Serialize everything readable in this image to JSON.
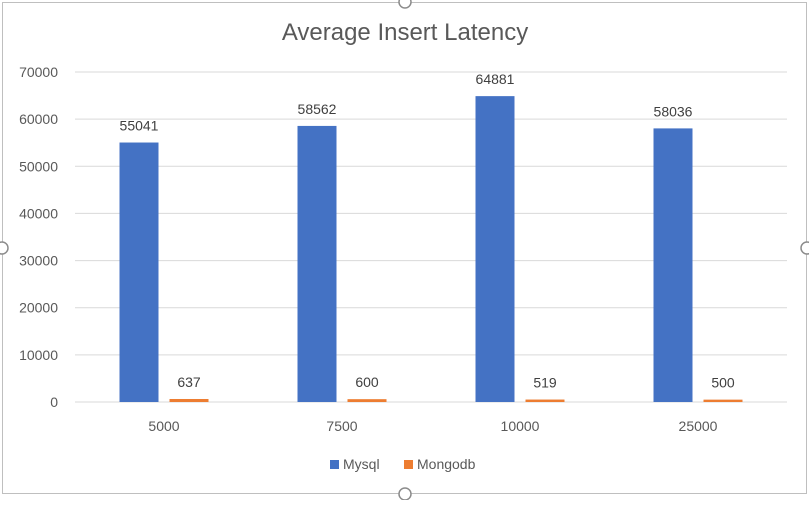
{
  "chart_data": {
    "type": "bar",
    "title": "Average Insert Latency",
    "xlabel": "",
    "ylabel": "",
    "categories": [
      "5000",
      "7500",
      "10000",
      "25000"
    ],
    "series": [
      {
        "name": "Mysql",
        "values": [
          55041,
          58562,
          64881,
          58036
        ],
        "color": "#4472C4"
      },
      {
        "name": "Mongodb",
        "values": [
          637,
          600,
          519,
          500
        ],
        "color": "#ED7D31"
      }
    ],
    "ylim": [
      0,
      70000
    ],
    "yticks": [
      "0",
      "10000",
      "20000",
      "30000",
      "40000",
      "50000",
      "60000",
      "70000"
    ],
    "grid": true,
    "legend_position": "bottom",
    "data_labels": true
  },
  "colors": {
    "gridline": "#D9D9D9",
    "axis_text": "#595959",
    "title_text": "#595959",
    "frame_border": "#BFBFBF"
  }
}
